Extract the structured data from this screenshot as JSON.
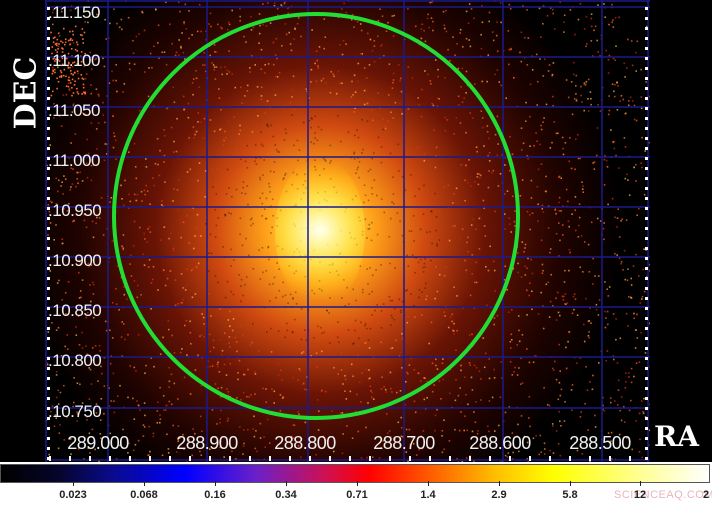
{
  "chart_data": {
    "type": "heatmap",
    "title": "",
    "xlabel": "RA",
    "ylabel": "DEC",
    "x_ticks": [
      "289.000",
      "288.900",
      "288.800",
      "288.700",
      "288.600",
      "288.500"
    ],
    "y_ticks": [
      "11.150",
      "11.100",
      "11.050",
      "11.000",
      "10.950",
      "10.900",
      "10.850",
      "10.800",
      "10.750"
    ],
    "xlim": [
      289.06,
      288.46
    ],
    "ylim": [
      10.71,
      11.16
    ],
    "grid": true,
    "grid_color": "#1a1a8c",
    "colormap": "heat (black-blue-red-yellow-white)",
    "colorbar": {
      "ticks": [
        "0.023",
        "0.068",
        "0.16",
        "0.34",
        "0.71",
        "1.4",
        "2.9",
        "5.8",
        "12",
        "2"
      ],
      "scale": "log",
      "stops": [
        "#000000",
        "#000066",
        "#0000ff",
        "#ff0000",
        "#ffa500",
        "#ffff00",
        "#ffffff"
      ]
    },
    "source": {
      "center_ra": 288.79,
      "center_dec": 10.925,
      "description": "diffuse X-ray emission peaked near center"
    },
    "annotations": [
      {
        "type": "circle",
        "color": "#22dd33",
        "center_ra": 288.795,
        "center_dec": 10.945,
        "radius_px": 202
      }
    ],
    "watermark": "SCIENCEAQ.COM"
  }
}
